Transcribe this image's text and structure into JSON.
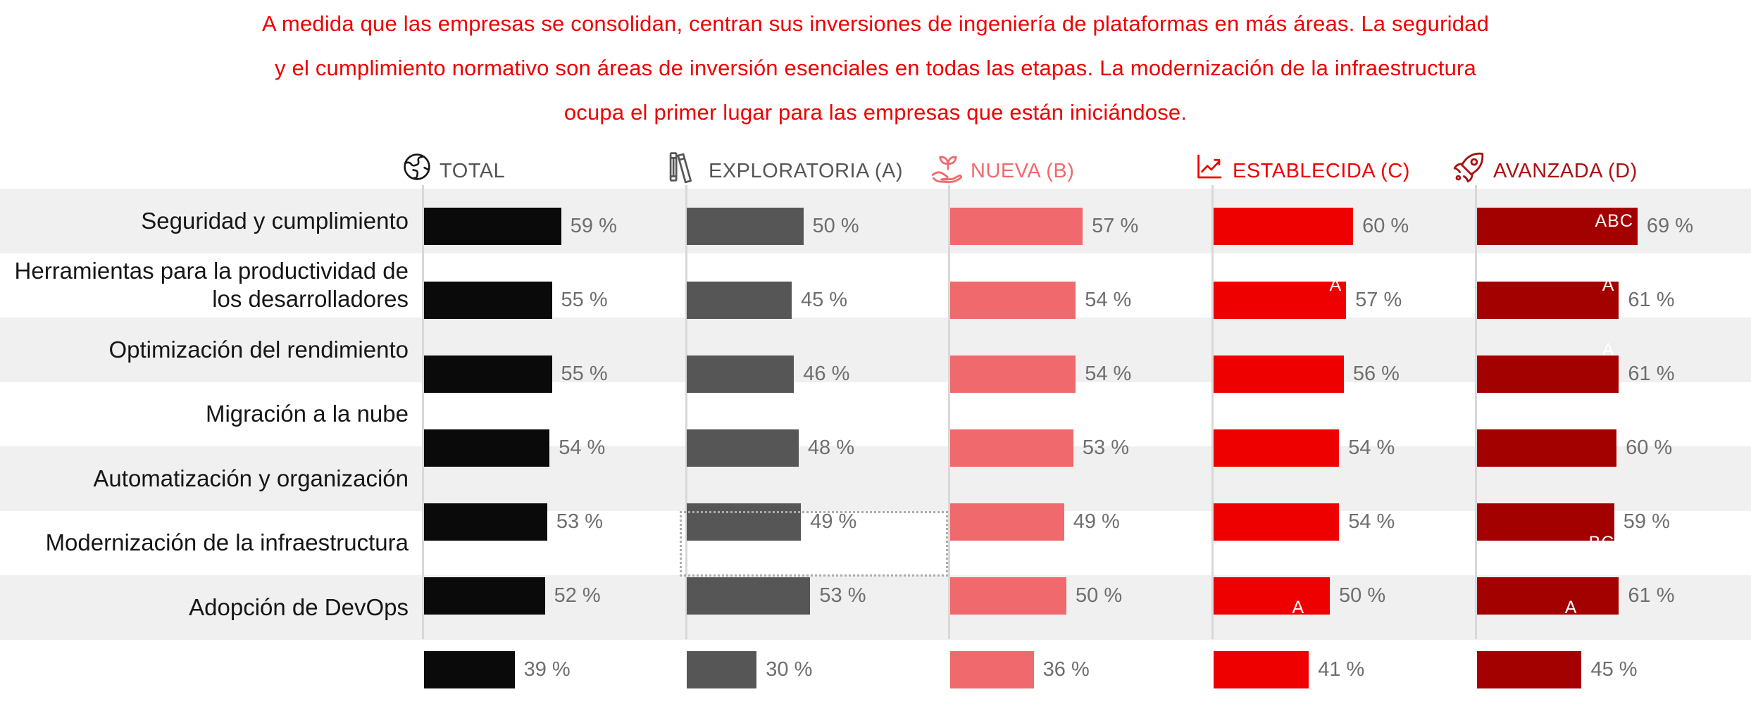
{
  "title": {
    "line1": "A medida que las empresas se consolidan, centran sus inversiones de ingeniería de plataformas en más áreas. La seguridad",
    "line2": "y el cumplimiento normativo son áreas de inversión esenciales en todas las etapas. La modernización de la infraestructura",
    "line3": "ocupa el primer lugar para las empresas que están iniciándose.",
    "color": "#EE0000"
  },
  "chart_data": {
    "type": "bar",
    "orientation": "horizontal",
    "unit": "%",
    "value_suffix": " %",
    "xlim": [
      0,
      100
    ],
    "grid": false,
    "legend_position": "top",
    "categories": [
      {
        "label": "Seguridad y cumplimiento",
        "lines": [
          "Seguridad y cumplimiento"
        ]
      },
      {
        "label": "Herramientas para la productividad de los desarrolladores",
        "lines": [
          "Herramientas para la productividad de",
          "los desarrolladores"
        ]
      },
      {
        "label": "Optimización del rendimiento",
        "lines": [
          "Optimización del rendimiento"
        ]
      },
      {
        "label": "Migración a la nube",
        "lines": [
          "Migración a la nube"
        ]
      },
      {
        "label": "Automatización y organización",
        "lines": [
          "Automatización y organización"
        ]
      },
      {
        "label": "Modernización de la infraestructura",
        "lines": [
          "Modernización de la infraestructura"
        ]
      },
      {
        "label": "Adopción de DevOps",
        "lines": [
          "Adopción de DevOps"
        ]
      }
    ],
    "series": [
      {
        "name": "TOTAL",
        "icon": "globe-icon",
        "color": "#0A0A0A",
        "header_text_color": "#545454",
        "header_icon_color": "#151515",
        "values": [
          59,
          55,
          55,
          54,
          53,
          52,
          39
        ]
      },
      {
        "name": "EXPLORATORIA (A)",
        "icon": "books-icon",
        "color": "#565656",
        "header_text_color": "#565656",
        "header_icon_color": "#565656",
        "values": [
          50,
          45,
          46,
          48,
          49,
          53,
          30
        ]
      },
      {
        "name": "NUEVA (B)",
        "icon": "seedling-hand-icon",
        "color": "#F0696C",
        "header_text_color": "#F0696C",
        "header_icon_color": "#F0696C",
        "values": [
          57,
          54,
          54,
          53,
          49,
          50,
          36
        ]
      },
      {
        "name": "ESTABLECIDA (C)",
        "icon": "line-chart-icon",
        "color": "#EE0000",
        "header_text_color": "#EE0000",
        "header_icon_color": "#EE0000",
        "values": [
          60,
          57,
          56,
          54,
          54,
          50,
          41
        ]
      },
      {
        "name": "AVANZADA (D)",
        "icon": "rocket-icon",
        "color": "#A30000",
        "header_text_color": "#A91111",
        "header_icon_color": "#A91111",
        "values": [
          69,
          61,
          61,
          60,
          59,
          61,
          45
        ]
      }
    ],
    "annotations": [
      {
        "category_index": 0,
        "series_index": 4,
        "label": "ABC"
      },
      {
        "category_index": 1,
        "series_index": 3,
        "label": "A"
      },
      {
        "category_index": 1,
        "series_index": 4,
        "label": "A"
      },
      {
        "category_index": 2,
        "series_index": 4,
        "label": "A"
      },
      {
        "category_index": 5,
        "series_index": 4,
        "label": "BC"
      },
      {
        "category_index": 6,
        "series_index": 3,
        "label": "A"
      },
      {
        "category_index": 6,
        "series_index": 4,
        "label": "A"
      }
    ],
    "highlight_box": {
      "series_index": 1,
      "category_index": 5,
      "style": "dotted"
    }
  }
}
